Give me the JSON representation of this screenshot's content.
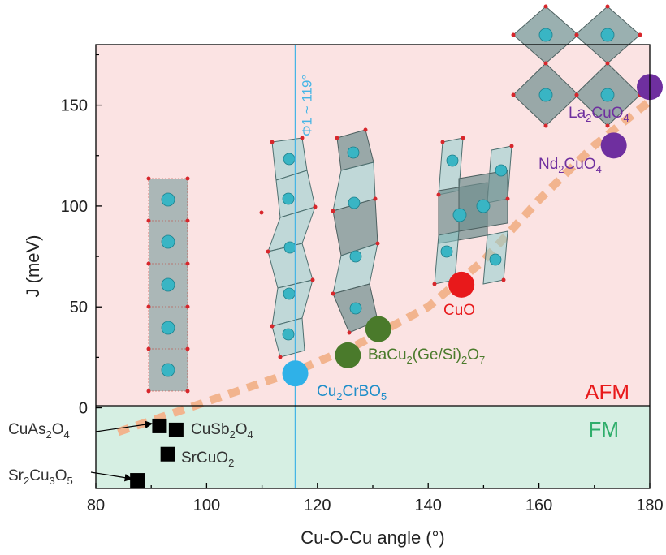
{
  "chart_data": {
    "type": "scatter",
    "xlabel": "Cu-O-Cu angle (°)",
    "ylabel": "J (meV)",
    "xlim": [
      80,
      180
    ],
    "ylim": [
      -40,
      180
    ],
    "xticks": [
      "80",
      "100",
      "120",
      "140",
      "160",
      "180"
    ],
    "yticks": [
      "0",
      "50",
      "100",
      "150"
    ],
    "regions": [
      {
        "name": "AFM",
        "label": "AFM",
        "from": 0,
        "to": 180,
        "color": "#fbe3e3",
        "label_color": "#e8191b"
      },
      {
        "name": "FM",
        "label": "FM",
        "from": -40,
        "to": 0,
        "color": "#d6efe3",
        "label_color": "#2fae6b"
      }
    ],
    "vertical_line": {
      "x": 116,
      "label": "Φ1 ~ 119°",
      "color": "#46b5e5"
    },
    "trend": {
      "x": [
        84,
        100,
        116,
        127,
        140,
        150,
        160,
        170,
        180
      ],
      "y": [
        -12,
        3,
        18,
        31,
        50,
        73,
        103,
        130,
        152
      ],
      "color": "#f2b48e"
    },
    "points": [
      {
        "name": "Cu2CrBO5",
        "x": 116,
        "y": 17,
        "color": "#2fb1e8",
        "marker": "circle",
        "label": "Cu",
        "sub": [
          "2"
        ],
        "label_tail": [
          "CrBO",
          "5"
        ],
        "label_color": "#1f8ec9"
      },
      {
        "name": "BaCu2(Ge/Si)2O7 a",
        "x": 125.5,
        "y": 26,
        "color": "#4a7a2b",
        "marker": "circle",
        "label": "",
        "label_color": "#4a7a2b"
      },
      {
        "name": "BaCu2(Ge/Si)2O7 b",
        "x": 131,
        "y": 39,
        "color": "#4a7a2b",
        "marker": "circle",
        "label": "BaCu",
        "sub": [
          "2"
        ],
        "label_tail": [
          "(Ge/Si)",
          "2",
          "O",
          "7"
        ],
        "label_color": "#4a7a2b"
      },
      {
        "name": "CuO",
        "x": 146,
        "y": 61,
        "color": "#e8191b",
        "marker": "circle",
        "label": "CuO",
        "sub": [],
        "label_tail": [],
        "label_color": "#e8191b"
      },
      {
        "name": "Nd2CuO4",
        "x": 173.5,
        "y": 130,
        "color": "#6f2f9f",
        "marker": "circle",
        "label": "Nd",
        "sub": [
          "2"
        ],
        "label_tail": [
          "CuO",
          "4"
        ],
        "label_color": "#6f2f9f"
      },
      {
        "name": "La2CuO4",
        "x": 180,
        "y": 159,
        "color": "#6f2f9f",
        "marker": "circle",
        "label": "La",
        "sub": [
          "2"
        ],
        "label_tail": [
          "CuO",
          "4"
        ],
        "label_color": "#6f2f9f"
      },
      {
        "name": "CuAs2O4",
        "x": 91.5,
        "y": -9,
        "color": "#000000",
        "marker": "square",
        "label": "CuAs",
        "sub": [
          "2"
        ],
        "label_tail": [
          "O",
          "4"
        ],
        "label_color": "#333"
      },
      {
        "name": "CuSb2O4",
        "x": 94.5,
        "y": -11,
        "color": "#000000",
        "marker": "square",
        "label": "CuSb",
        "sub": [
          "2"
        ],
        "label_tail": [
          "O",
          "4"
        ],
        "label_color": "#333"
      },
      {
        "name": "SrCuO2",
        "x": 93,
        "y": -23,
        "color": "#000000",
        "marker": "square",
        "label": "SrCuO",
        "sub": [
          "2"
        ],
        "label_tail": [],
        "label_color": "#333"
      },
      {
        "name": "Sr2Cu3O5",
        "x": 87.5,
        "y": -36,
        "color": "#000000",
        "marker": "square",
        "label": "Sr",
        "sub": [
          "2"
        ],
        "label_tail": [
          "Cu",
          "3",
          "O",
          "5"
        ],
        "label_color": "#333"
      }
    ]
  }
}
